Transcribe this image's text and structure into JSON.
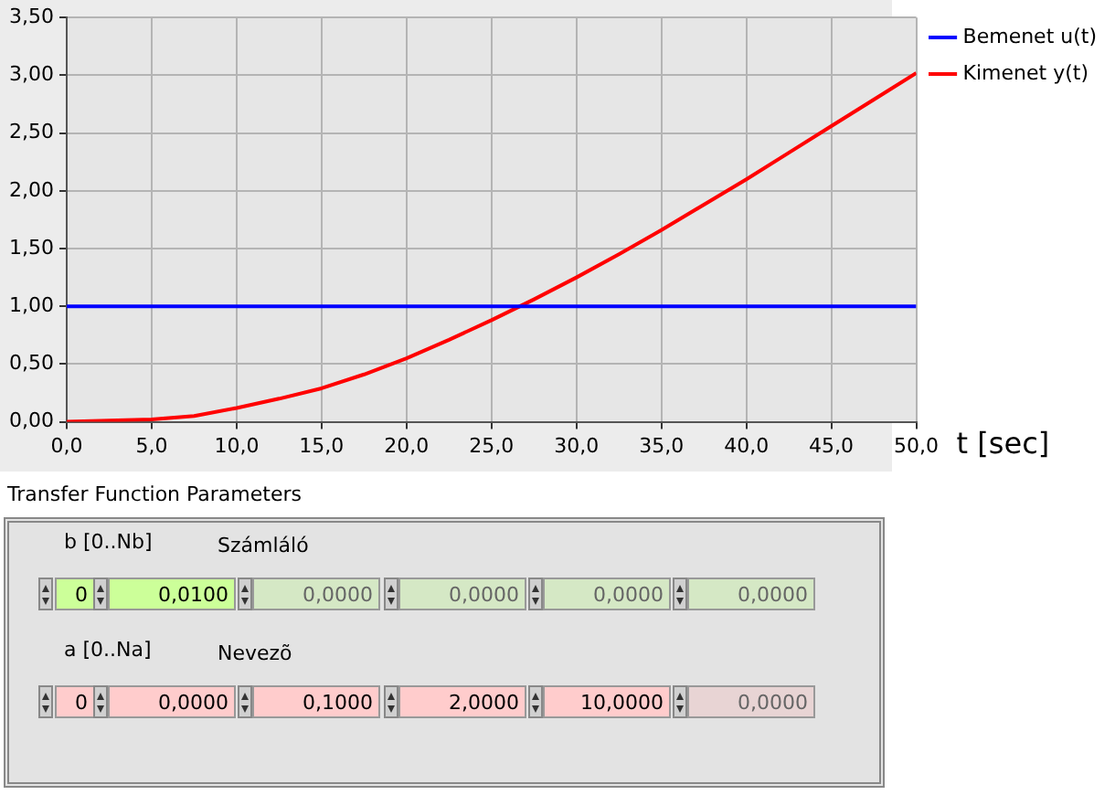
{
  "chart_data": {
    "type": "line",
    "xlabel": "t [sec]",
    "xlim": [
      0,
      50
    ],
    "xticks": [
      {
        "value": 0,
        "label": "0,0"
      },
      {
        "value": 5,
        "label": "5,0"
      },
      {
        "value": 10,
        "label": "10,0"
      },
      {
        "value": 15,
        "label": "15,0"
      },
      {
        "value": 20,
        "label": "20,0"
      },
      {
        "value": 25,
        "label": "25,0"
      },
      {
        "value": 30,
        "label": "30,0"
      },
      {
        "value": 35,
        "label": "35,0"
      },
      {
        "value": 40,
        "label": "40,0"
      },
      {
        "value": 45,
        "label": "45,0"
      },
      {
        "value": 50,
        "label": "50,0"
      }
    ],
    "ylim": [
      0,
      3.5
    ],
    "yticks": [
      {
        "value": 0,
        "label": "0,00"
      },
      {
        "value": 0.5,
        "label": "0,50"
      },
      {
        "value": 1,
        "label": "1,00"
      },
      {
        "value": 1.5,
        "label": "1,50"
      },
      {
        "value": 2,
        "label": "2,00"
      },
      {
        "value": 2.5,
        "label": "2,50"
      },
      {
        "value": 3,
        "label": "3,00"
      },
      {
        "value": 3.5,
        "label": "3,50"
      }
    ],
    "x": [
      0,
      2.5,
      5,
      7.5,
      10,
      12.5,
      15,
      17.5,
      20,
      22.5,
      25,
      27.5,
      30,
      32.5,
      35,
      37.5,
      40,
      42.5,
      45,
      47.5,
      50
    ],
    "series": [
      {
        "name": "Bemenet u(t)",
        "color": "#0000ff",
        "values": [
          1,
          1,
          1,
          1,
          1,
          1,
          1,
          1,
          1,
          1,
          1,
          1,
          1,
          1,
          1,
          1,
          1,
          1,
          1,
          1,
          1
        ]
      },
      {
        "name": "Kimenet y(t)",
        "color": "#ff0000",
        "values": [
          0,
          0.01,
          0.02,
          0.05,
          0.12,
          0.2,
          0.29,
          0.41,
          0.55,
          0.71,
          0.88,
          1.06,
          1.25,
          1.45,
          1.66,
          1.88,
          2.1,
          2.33,
          2.56,
          2.79,
          3.02
        ]
      }
    ],
    "grid": true,
    "legend": "top right",
    "marker": "none",
    "line_style": "solid",
    "annotations": [
      "Transfer Function Parameters",
      "b [0..Nb]",
      "Számláló",
      "0",
      "0,0100",
      "0,0000",
      "0,0000",
      "0,0000",
      "0,0000",
      "a [0..Na]",
      "Nevezõ",
      "0",
      "0,0000",
      "0,1000",
      "2,0000",
      "10,0000",
      "0,0000"
    ]
  }
}
